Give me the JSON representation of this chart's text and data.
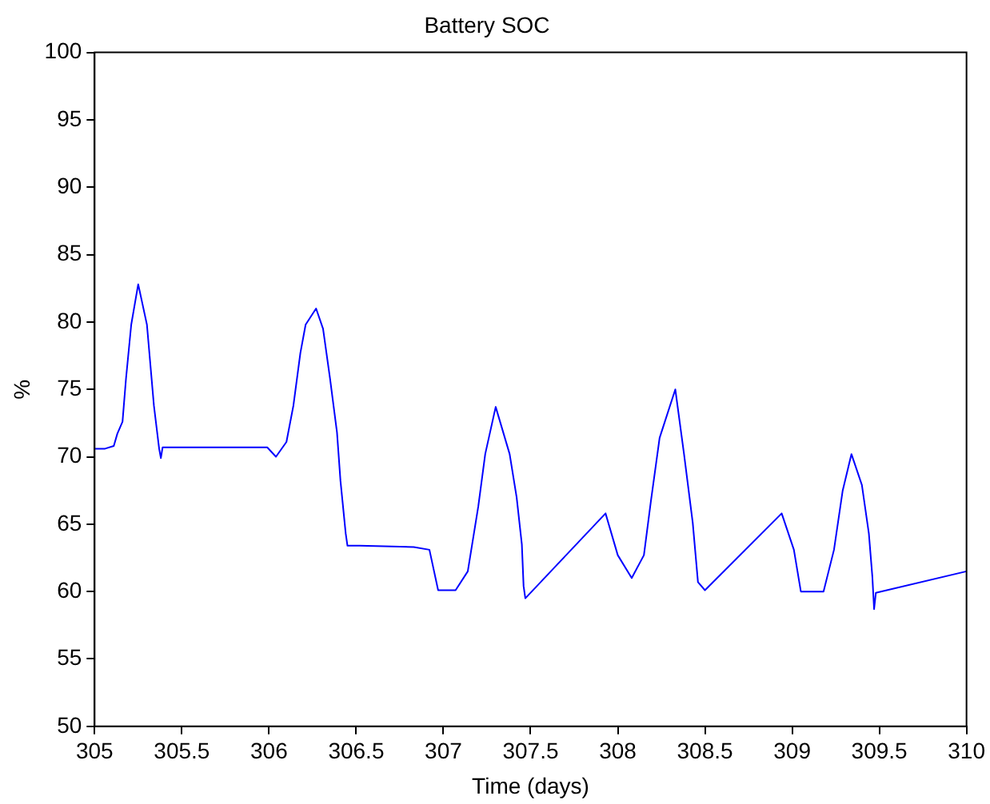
{
  "chart_data": {
    "type": "line",
    "title": "Battery SOC",
    "xlabel": "Time (days)",
    "ylabel": "%",
    "xlim": [
      305,
      310
    ],
    "xticks": [
      305,
      305.5,
      306,
      306.5,
      307,
      307.5,
      308,
      308.5,
      309,
      309.5,
      310
    ],
    "ylim": [
      50,
      100
    ],
    "yticks": [
      50,
      55,
      60,
      65,
      70,
      75,
      80,
      85,
      90,
      95,
      100
    ],
    "grid": false,
    "legend": false,
    "marker": "none",
    "line_style": "solid",
    "series": [
      {
        "color": "#0000ff",
        "x": [
          305,
          305.06,
          305.11,
          305.13,
          305.16,
          305.18,
          305.21,
          305.25,
          305.3,
          305.34,
          305.37,
          305.38,
          305.39,
          305.99,
          306.04,
          306.1,
          306.14,
          306.18,
          306.21,
          306.27,
          306.31,
          306.35,
          306.39,
          306.41,
          306.44,
          306.45,
          306.52,
          306.83,
          306.92,
          306.97,
          307.07,
          307.14,
          307.2,
          307.24,
          307.3,
          307.38,
          307.42,
          307.45,
          307.46,
          307.47,
          307.93,
          308,
          308.08,
          308.15,
          308.19,
          308.24,
          308.33,
          308.38,
          308.43,
          308.46,
          308.5,
          308.94,
          309.01,
          309.05,
          309.18,
          309.24,
          309.29,
          309.34,
          309.4,
          309.44,
          309.46,
          309.47,
          309.48,
          310
        ],
        "values": [
          70.6,
          70.6,
          70.8,
          71.7,
          72.6,
          75.8,
          79.8,
          82.8,
          79.8,
          73.8,
          70.6,
          69.9,
          70.7,
          70.7,
          70,
          71.1,
          73.8,
          77.7,
          79.8,
          81,
          79.5,
          75.8,
          71.8,
          68.2,
          64.3,
          63.4,
          63.4,
          63.3,
          63.1,
          60.1,
          60.1,
          61.5,
          66.3,
          70.2,
          73.7,
          70.2,
          67,
          63.5,
          60.4,
          59.5,
          65.8,
          62.7,
          61,
          62.7,
          66.7,
          71.4,
          75,
          70.2,
          65.1,
          60.7,
          60.1,
          65.8,
          63.1,
          60,
          60,
          63.1,
          67.5,
          70.2,
          67.9,
          64.3,
          61.1,
          58.7,
          59.9,
          61.5
        ]
      }
    ]
  }
}
